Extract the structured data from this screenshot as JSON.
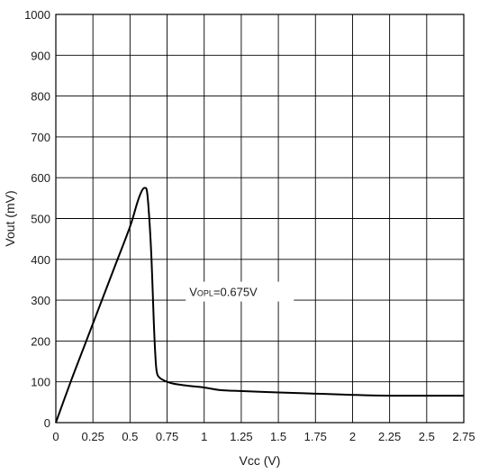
{
  "chart_data": {
    "type": "line",
    "title": "",
    "xlabel": "Vcc (V)",
    "ylabel": "Vout (mV)",
    "xlim": [
      0,
      2.75
    ],
    "ylim": [
      0,
      1000
    ],
    "grid": true,
    "x_ticks": [
      0,
      0.25,
      0.5,
      0.75,
      1,
      1.25,
      1.5,
      1.75,
      2,
      2.25,
      2.5,
      2.75
    ],
    "x_tick_labels": [
      "0",
      "0.25",
      "0.5",
      "0.75",
      "1",
      "1.25",
      "1.5",
      "1.75",
      "2",
      "2.25",
      "2.5",
      "2.75"
    ],
    "y_ticks": [
      0,
      100,
      200,
      300,
      400,
      500,
      600,
      700,
      800,
      900,
      1000
    ],
    "y_tick_labels": [
      "0",
      "100",
      "200",
      "300",
      "400",
      "500",
      "600",
      "700",
      "800",
      "900",
      "1000"
    ],
    "series": [
      {
        "color": "#000000",
        "x": [
          0,
          0.1,
          0.2,
          0.3,
          0.4,
          0.5,
          0.55,
          0.58,
          0.6,
          0.615,
          0.63,
          0.645,
          0.66,
          0.67,
          0.68,
          0.7,
          0.75,
          0.8,
          0.9,
          1.0,
          1.1,
          1.2,
          1.5,
          1.75,
          2.0,
          2.25,
          2.5,
          2.75
        ],
        "y": [
          0,
          100,
          195,
          290,
          385,
          480,
          540,
          568,
          575,
          565,
          500,
          400,
          250,
          170,
          125,
          110,
          100,
          95,
          90,
          86,
          80,
          78,
          74,
          71,
          68,
          66,
          66,
          66
        ]
      }
    ],
    "annotations": [
      {
        "prefix": "V",
        "subscript": "OPL",
        "suffix": "=0.675V",
        "x": 0.9,
        "y": 310
      }
    ]
  }
}
